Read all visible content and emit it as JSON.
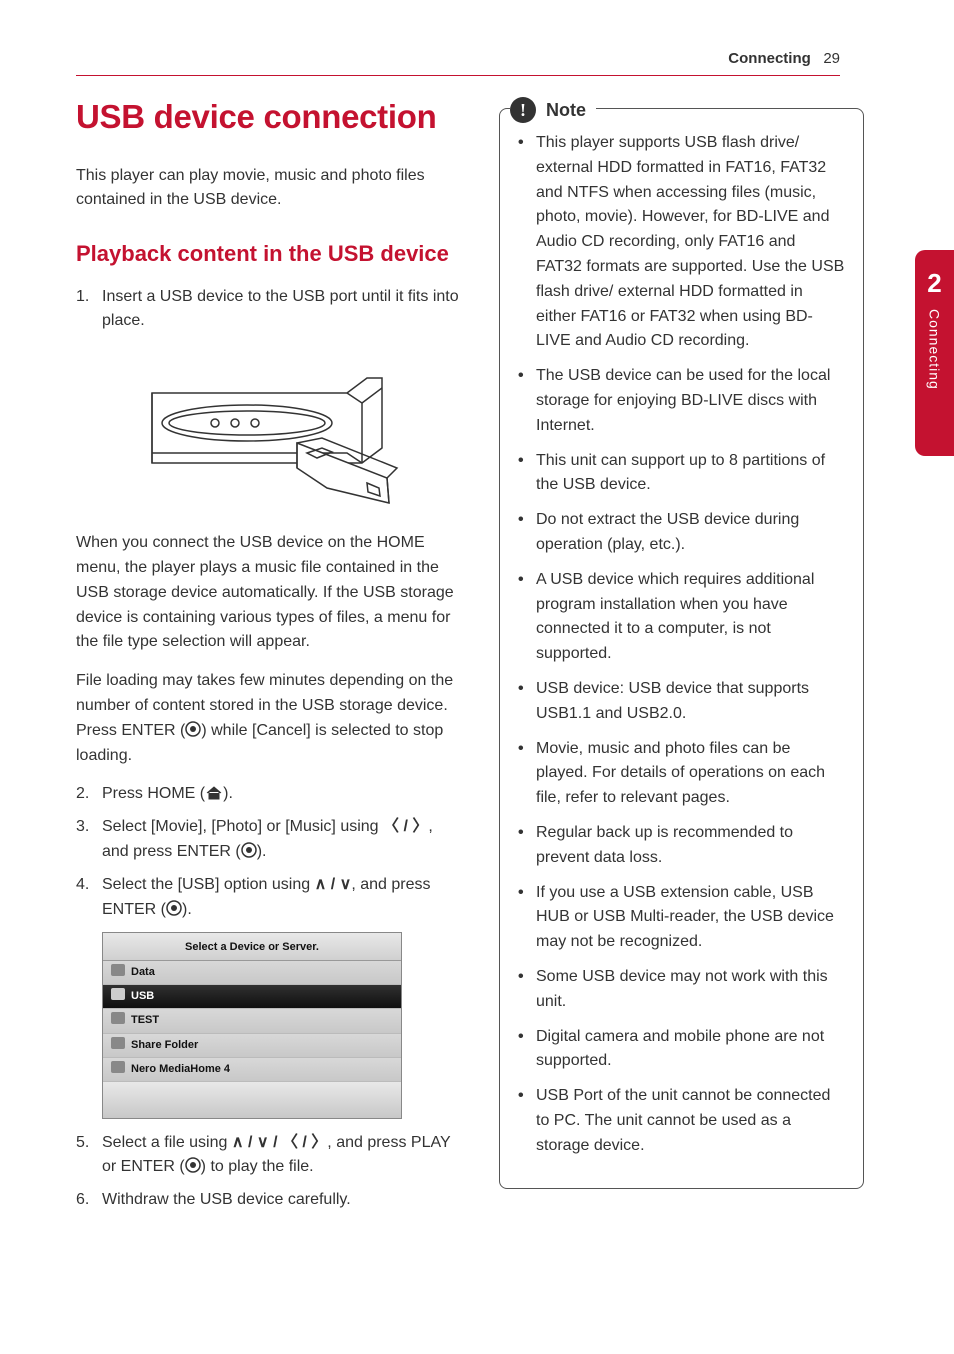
{
  "page": {
    "header_section": "Connecting",
    "header_page": "29",
    "chapter_number": "2",
    "chapter_label": "Connecting"
  },
  "colors": {
    "accent": "#c41230",
    "text": "#333333",
    "note_border": "#555555"
  },
  "left": {
    "title": "USB device connection",
    "intro": "This player can play movie, music and photo files contained in the USB device.",
    "subtitle": "Playback content in the USB device",
    "step1": "Insert a USB device to the USB port until it fits into place.",
    "para1": "When you connect the USB device on the HOME menu, the player plays a music file contained in the USB storage device automatically. If the USB storage device is containing various types of files, a menu for the file type selection will appear.",
    "para2_a": "File loading may takes few minutes depending on the number of content stored in the USB storage device. Press ENTER (",
    "para2_b": ") while [Cancel] is selected to stop loading.",
    "step2_a": "Press HOME (",
    "step2_b": ").",
    "step3_a": "Select [Movie], [Photo] or [Music] using ",
    "step3_nav": "〈 / 〉",
    "step3_b": ", and press ENTER (",
    "step3_c": ").",
    "step4_a": "Select the [USB] option using ",
    "step4_nav": "∧ / ∨",
    "step4_b": ", and press ENTER (",
    "step4_c": ").",
    "device_list": {
      "header": "Select a Device or Server.",
      "items": [
        "Data",
        "USB",
        "TEST",
        "Share Folder",
        "Nero MediaHome 4"
      ],
      "selected_index": 1
    },
    "step5_a": "Select a file using ",
    "step5_nav": "∧ / ∨ / 〈 / 〉",
    "step5_b": ", and press PLAY or ENTER (",
    "step5_c": ") to play the file.",
    "step6": "Withdraw the USB device carefully."
  },
  "note": {
    "label": "Note",
    "items": [
      "This player supports USB flash drive/ external HDD formatted in FAT16, FAT32 and NTFS when accessing files (music, photo, movie). However, for BD-LIVE and Audio CD recording, only FAT16 and FAT32 formats are supported. Use the USB flash drive/ external HDD formatted in either FAT16 or FAT32 when using BD-LIVE and Audio CD recording.",
      "The USB device can be used for the local storage for enjoying BD-LIVE discs with Internet.",
      "This unit can support up to 8 partitions of the USB device.",
      "Do not extract the USB device during operation (play, etc.).",
      "A USB device which requires additional program installation when you have connected it to a computer, is not supported.",
      "USB device: USB device that supports USB1.1 and USB2.0.",
      "Movie, music and photo files can be played. For details of operations on each file, refer to relevant pages.",
      "Regular back up is recommended to prevent data loss.",
      "If you use a USB extension cable, USB HUB or USB Multi-reader, the USB device may not be recognized.",
      "Some USB device may not work with this unit.",
      "Digital camera and mobile phone are not supported.",
      "USB Port of the unit cannot be connected to PC. The unit cannot be used as a storage device."
    ]
  }
}
